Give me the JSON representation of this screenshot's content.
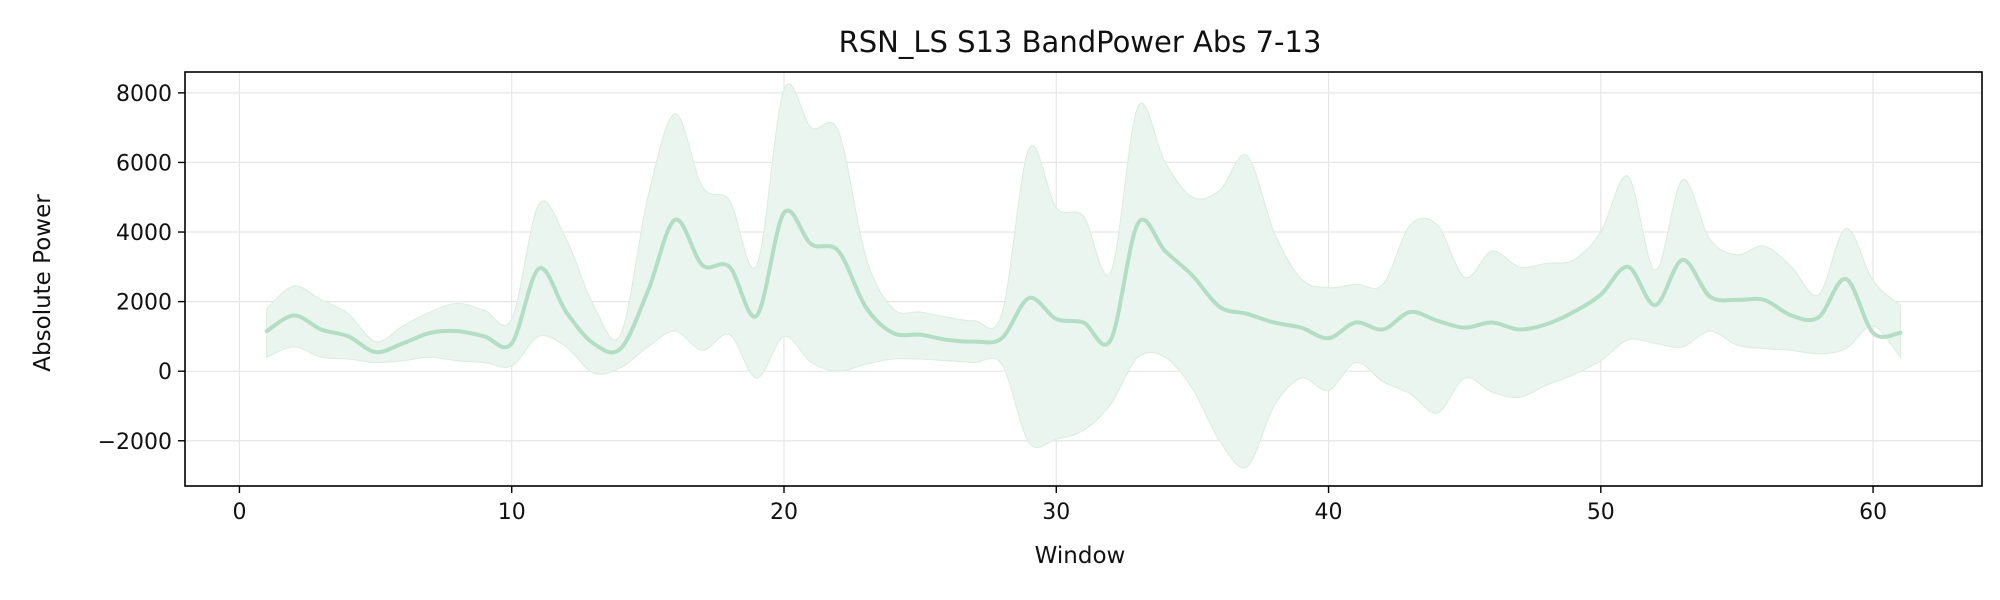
{
  "chart_data": {
    "type": "line",
    "title": "RSN_LS S13 BandPower Abs 7-13",
    "xlabel": "Window",
    "ylabel": "Absolute Power",
    "xlim": [
      -2,
      64
    ],
    "ylim": [
      -3300,
      8600
    ],
    "xticks": [
      0,
      10,
      20,
      30,
      40,
      50,
      60
    ],
    "yticks": [
      -2000,
      0,
      2000,
      4000,
      6000,
      8000
    ],
    "ytick_labels": [
      "−2000",
      "0",
      "2000",
      "4000",
      "6000",
      "8000"
    ],
    "grid": true,
    "legend": "none",
    "colors": {
      "line": "#b3dec4",
      "band": "#e9f5ee",
      "band_edge": "#d8eddf",
      "frame": "#000000",
      "grid": "#e6e6e6"
    },
    "series": [
      {
        "x": [
          1,
          2,
          3,
          4,
          5,
          6,
          7,
          8,
          9,
          10,
          11,
          12,
          13,
          14,
          15,
          16,
          17,
          18,
          19,
          20,
          21,
          22,
          23,
          24,
          25,
          26,
          27,
          28,
          29,
          30,
          31,
          32,
          33,
          34,
          35,
          36,
          37,
          38,
          39,
          40,
          41,
          42,
          43,
          44,
          45,
          46,
          47,
          48,
          49,
          50,
          51,
          52,
          53,
          54,
          55,
          56,
          57,
          58,
          59,
          60,
          61
        ],
        "mean": [
          1150,
          1600,
          1200,
          1000,
          550,
          800,
          1100,
          1150,
          1000,
          800,
          2950,
          1700,
          800,
          650,
          2300,
          4350,
          3050,
          3000,
          1600,
          4550,
          3650,
          3450,
          1850,
          1100,
          1050,
          900,
          850,
          950,
          2100,
          1500,
          1400,
          900,
          4250,
          3450,
          2750,
          1850,
          1650,
          1400,
          1250,
          950,
          1400,
          1200,
          1700,
          1450,
          1250,
          1400,
          1200,
          1350,
          1700,
          2200,
          3000,
          1900,
          3200,
          2150,
          2050,
          2050,
          1600,
          1550,
          2650,
          1100,
          1100
        ],
        "upper": [
          1800,
          2450,
          2050,
          1650,
          850,
          1300,
          1700,
          1950,
          1750,
          1500,
          4800,
          3800,
          1900,
          1050,
          5000,
          7400,
          5300,
          4900,
          3050,
          8100,
          7000,
          6900,
          3300,
          1800,
          1700,
          1550,
          1450,
          1650,
          6400,
          4700,
          4450,
          2850,
          7600,
          6000,
          5000,
          5200,
          6200,
          4000,
          2650,
          2400,
          2500,
          2500,
          4200,
          4200,
          2700,
          3450,
          3000,
          3100,
          3200,
          4000,
          5600,
          2900,
          5500,
          3800,
          3350,
          3600,
          3000,
          2200,
          4100,
          2600,
          1900
        ],
        "lower": [
          400,
          700,
          400,
          350,
          250,
          300,
          400,
          300,
          250,
          150,
          1000,
          700,
          -50,
          100,
          700,
          1150,
          600,
          1050,
          -200,
          1000,
          250,
          0,
          200,
          350,
          350,
          300,
          250,
          200,
          -2050,
          -1950,
          -1700,
          -950,
          400,
          400,
          -500,
          -2000,
          -2750,
          -1000,
          -200,
          -550,
          250,
          -300,
          -650,
          -1200,
          -200,
          -600,
          -750,
          -400,
          -100,
          300,
          900,
          800,
          700,
          1150,
          750,
          650,
          600,
          500,
          650,
          1300,
          400
        ]
      }
    ]
  }
}
